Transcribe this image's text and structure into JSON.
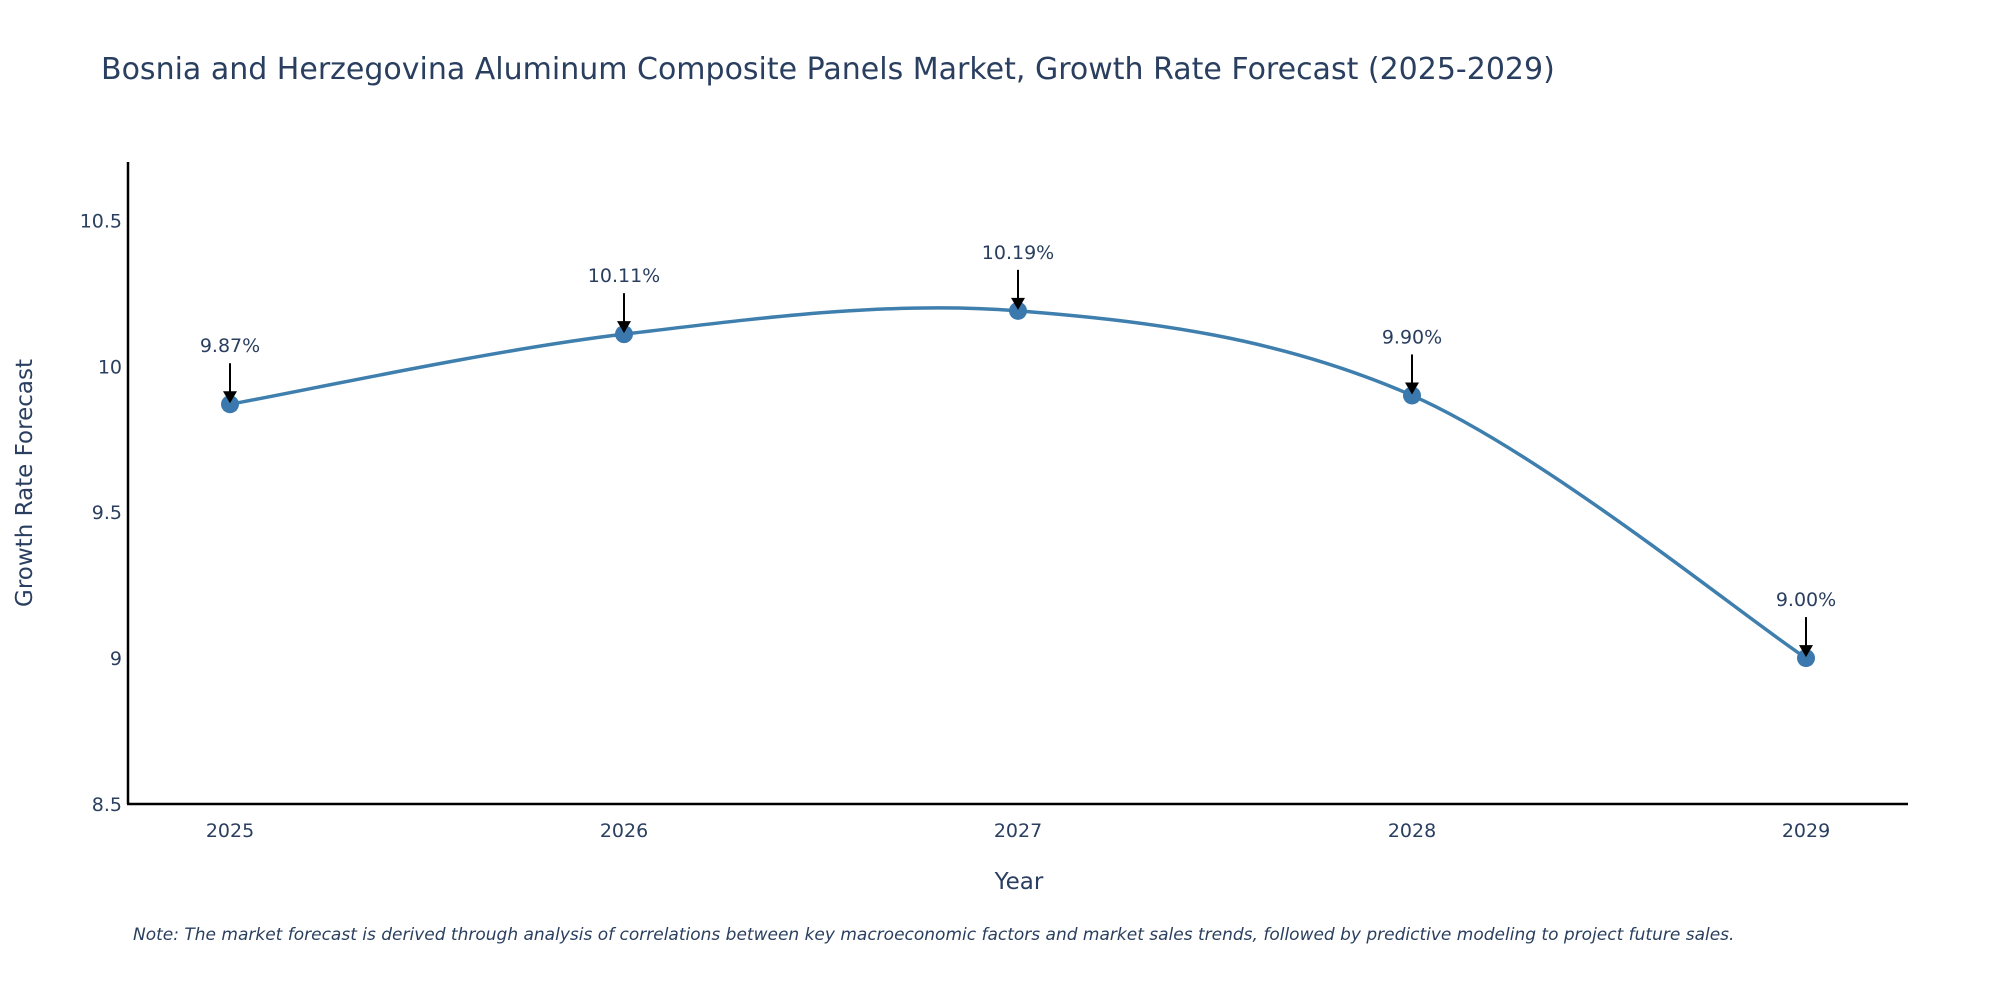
{
  "chart_data": {
    "type": "line",
    "title": "Bosnia and Herzegovina Aluminum Composite Panels Market, Growth Rate Forecast (2025-2029)",
    "xlabel": "Year",
    "ylabel": "Growth Rate Forecast",
    "categories": [
      "2025",
      "2026",
      "2027",
      "2028",
      "2029"
    ],
    "series": [
      {
        "name": "Growth Rate Forecast",
        "values": [
          9.87,
          10.11,
          10.19,
          9.9,
          9.0
        ],
        "labels": [
          "9.87%",
          "10.11%",
          "10.19%",
          "9.90%",
          "9.00%"
        ]
      }
    ],
    "ylim": [
      8.5,
      10.7
    ],
    "yticks": [
      8.5,
      9,
      9.5,
      10,
      10.5
    ],
    "ytick_labels": [
      "8.5",
      "9",
      "9.5",
      "10",
      "10.5"
    ],
    "line_shape": "spline",
    "grid": false,
    "note": "Note: The market forecast is derived through analysis of correlations between key macroeconomic factors and market sales trends, followed by predictive modeling to project future sales."
  },
  "colors": {
    "line": "#3f7fae",
    "marker": "#3a78ad",
    "axis": "#000000",
    "text": "#2a3f5f",
    "arrow": "#000000"
  }
}
